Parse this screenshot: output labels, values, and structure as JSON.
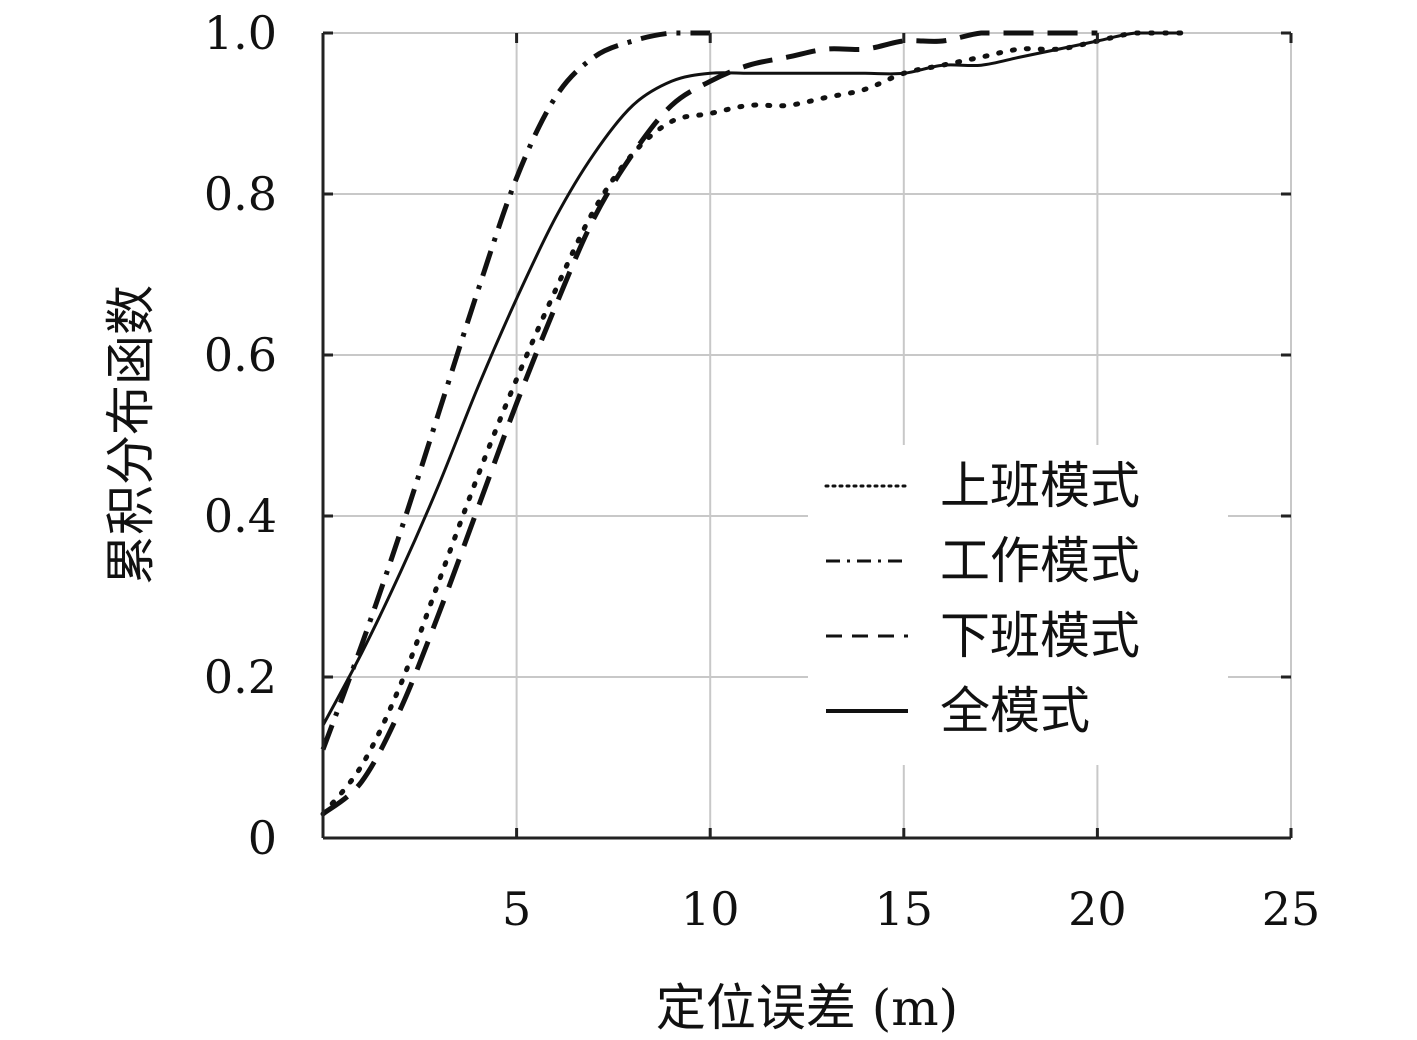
{
  "chart_data": {
    "type": "line",
    "title": "",
    "xlabel": "定位误差 (m)",
    "ylabel": "累积分布函数",
    "xlim": [
      0,
      25
    ],
    "ylim": [
      0,
      1
    ],
    "grid": true,
    "legend_position": "center-right",
    "x_ticks": [
      {
        "value": 5,
        "label": "5"
      },
      {
        "value": 10,
        "label": "10"
      },
      {
        "value": 15,
        "label": "15"
      },
      {
        "value": 20,
        "label": "20"
      },
      {
        "value": 25,
        "label": "25"
      }
    ],
    "y_ticks": [
      {
        "value": 0,
        "label": "0"
      },
      {
        "value": 0.2,
        "label": "0.2"
      },
      {
        "value": 0.4,
        "label": "0.4"
      },
      {
        "value": 0.6,
        "label": "0.6"
      },
      {
        "value": 0.8,
        "label": "0.8"
      },
      {
        "value": 1.0,
        "label": "1.0"
      }
    ],
    "series": [
      {
        "name": "上班模式",
        "style": "dotted",
        "x": [
          0,
          1,
          2,
          3,
          4,
          5,
          6,
          7,
          8,
          9,
          10,
          11,
          12,
          13,
          14,
          15,
          16,
          17,
          18,
          19,
          20,
          21,
          22.2
        ],
        "y": [
          0.03,
          0.09,
          0.19,
          0.32,
          0.45,
          0.57,
          0.68,
          0.78,
          0.85,
          0.89,
          0.9,
          0.91,
          0.91,
          0.92,
          0.93,
          0.95,
          0.96,
          0.97,
          0.98,
          0.98,
          0.99,
          1.0,
          1.0
        ]
      },
      {
        "name": "工作模式",
        "style": "dash-dot",
        "x": [
          0,
          1,
          2,
          3,
          4,
          5,
          6,
          7,
          8,
          9,
          10
        ],
        "y": [
          0.11,
          0.24,
          0.38,
          0.53,
          0.68,
          0.82,
          0.92,
          0.97,
          0.99,
          1.0,
          1.0
        ]
      },
      {
        "name": "下班模式",
        "style": "dashed",
        "x": [
          0,
          1,
          2,
          3,
          4,
          5,
          6,
          7,
          8,
          9,
          10,
          11,
          12,
          13,
          14,
          15,
          16,
          17,
          18,
          19,
          20
        ],
        "y": [
          0.03,
          0.07,
          0.16,
          0.28,
          0.41,
          0.54,
          0.66,
          0.77,
          0.85,
          0.91,
          0.94,
          0.96,
          0.97,
          0.98,
          0.98,
          0.99,
          0.99,
          1.0,
          1.0,
          1.0,
          1.0
        ]
      },
      {
        "name": "全模式",
        "style": "solid",
        "x": [
          0,
          1,
          2,
          3,
          4,
          5,
          6,
          7,
          8,
          9,
          10,
          11,
          12,
          13,
          14,
          15,
          16,
          17,
          18,
          19,
          20,
          21,
          22.2
        ],
        "y": [
          0.14,
          0.23,
          0.33,
          0.44,
          0.56,
          0.67,
          0.77,
          0.85,
          0.91,
          0.94,
          0.95,
          0.95,
          0.95,
          0.95,
          0.95,
          0.95,
          0.96,
          0.96,
          0.97,
          0.98,
          0.99,
          1.0,
          1.0
        ]
      }
    ]
  },
  "colors": {
    "line": "#111111",
    "grid": "#c8c8c8",
    "axis": "#222222"
  }
}
